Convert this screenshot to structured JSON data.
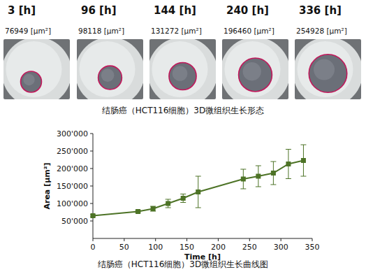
{
  "chart_data": {
    "type": "line",
    "title": "结肠癌（HCT116细胞）3D微组织生长曲线图",
    "x_label": "Time [h]",
    "y_label": "Area [μm²]",
    "x": [
      0,
      72,
      96,
      120,
      144,
      168,
      240,
      264,
      288,
      312,
      336
    ],
    "values": [
      65000,
      77000,
      85000,
      100000,
      115000,
      133000,
      170000,
      178000,
      187000,
      213000,
      223000
    ],
    "errors": [
      3000,
      3000,
      7000,
      12000,
      12000,
      45000,
      28000,
      30000,
      33000,
      42000,
      45000
    ],
    "color": "#4d7326",
    "marker": "square",
    "line_style": "solid",
    "xlim": [
      0,
      350
    ],
    "xticks": [
      0,
      50,
      100,
      150,
      200,
      250,
      300,
      350
    ],
    "ylim": [
      0,
      300000
    ],
    "yticks": [
      {
        "value": 50000,
        "label": "50'000"
      },
      {
        "value": 100000,
        "label": "100'000"
      },
      {
        "value": 150000,
        "label": "150'000"
      },
      {
        "value": 200000,
        "label": "200'000"
      },
      {
        "value": 250000,
        "label": "250'000"
      },
      {
        "value": 300000,
        "label": "300'000"
      }
    ],
    "grid": false
  },
  "panel": {
    "caption": "结肠癌（HCT116细胞）3D微组织生长形态",
    "images": [
      {
        "time": "3 [h]",
        "area": {
          "value": 76949,
          "label": "76949 [μm²]"
        }
      },
      {
        "time": "96 [h]",
        "area": {
          "value": 98118,
          "label": "98118 [μm²]"
        }
      },
      {
        "time": "144 [h]",
        "area": {
          "value": 131272,
          "label": "131272 [μm²]"
        }
      },
      {
        "time": "240 [h]",
        "area": {
          "value": 196460,
          "label": "196460 [μm²]"
        }
      },
      {
        "time": "336 [h]",
        "area": {
          "value": 254928,
          "label": "254928 [μm²]"
        }
      }
    ]
  }
}
